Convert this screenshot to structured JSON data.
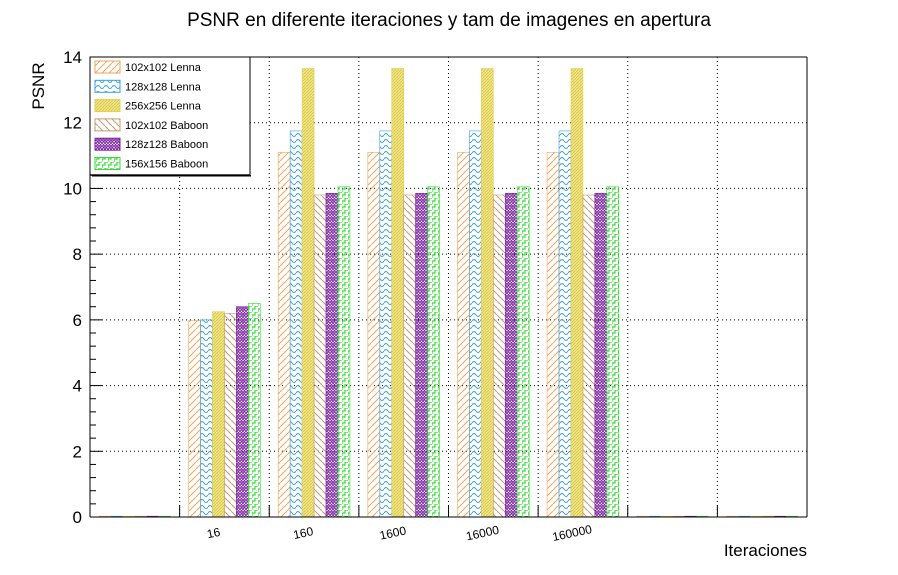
{
  "chart_data": {
    "type": "bar",
    "title": "PSNR en diferente iteraciones y tam de imagenes en apertura",
    "xlabel": "Iteraciones",
    "ylabel": "PSNR",
    "ylim": [
      0,
      14
    ],
    "yticks": [
      "0",
      "2",
      "4",
      "6",
      "8",
      "10",
      "12",
      "14"
    ],
    "grid": true,
    "legend_position": "top-left",
    "categories": [
      "",
      "16",
      "160",
      "1600",
      "16000",
      "160000",
      "",
      ""
    ],
    "series": [
      {
        "name": "102x102 Lenna",
        "color": "#f2a55a",
        "pattern": "diag-right",
        "values": [
          0,
          5.98,
          11.1,
          11.1,
          11.1,
          11.1,
          0,
          0
        ]
      },
      {
        "name": "128x128 Lenna",
        "color": "#3aa0d8",
        "pattern": "waves",
        "values": [
          0,
          6.0,
          11.75,
          11.75,
          11.75,
          11.75,
          0,
          0
        ]
      },
      {
        "name": "256x256 Lenna",
        "color": "#e0d050",
        "pattern": "dense",
        "values": [
          0,
          6.25,
          13.65,
          13.65,
          13.65,
          13.65,
          0,
          0
        ]
      },
      {
        "name": "102x102 Baboon",
        "color": "#c79870",
        "pattern": "diag-left",
        "values": [
          0,
          6.2,
          9.8,
          9.8,
          9.8,
          9.8,
          0,
          0
        ]
      },
      {
        "name": "128z128 Baboon",
        "color": "#7a1fa0",
        "pattern": "zigzag",
        "values": [
          0,
          6.4,
          9.85,
          9.85,
          9.85,
          9.85,
          0,
          0
        ]
      },
      {
        "name": "156x156 Baboon",
        "color": "#33dd33",
        "pattern": "steps",
        "values": [
          0,
          6.5,
          10.05,
          10.05,
          10.05,
          10.05,
          0,
          0
        ]
      }
    ]
  }
}
